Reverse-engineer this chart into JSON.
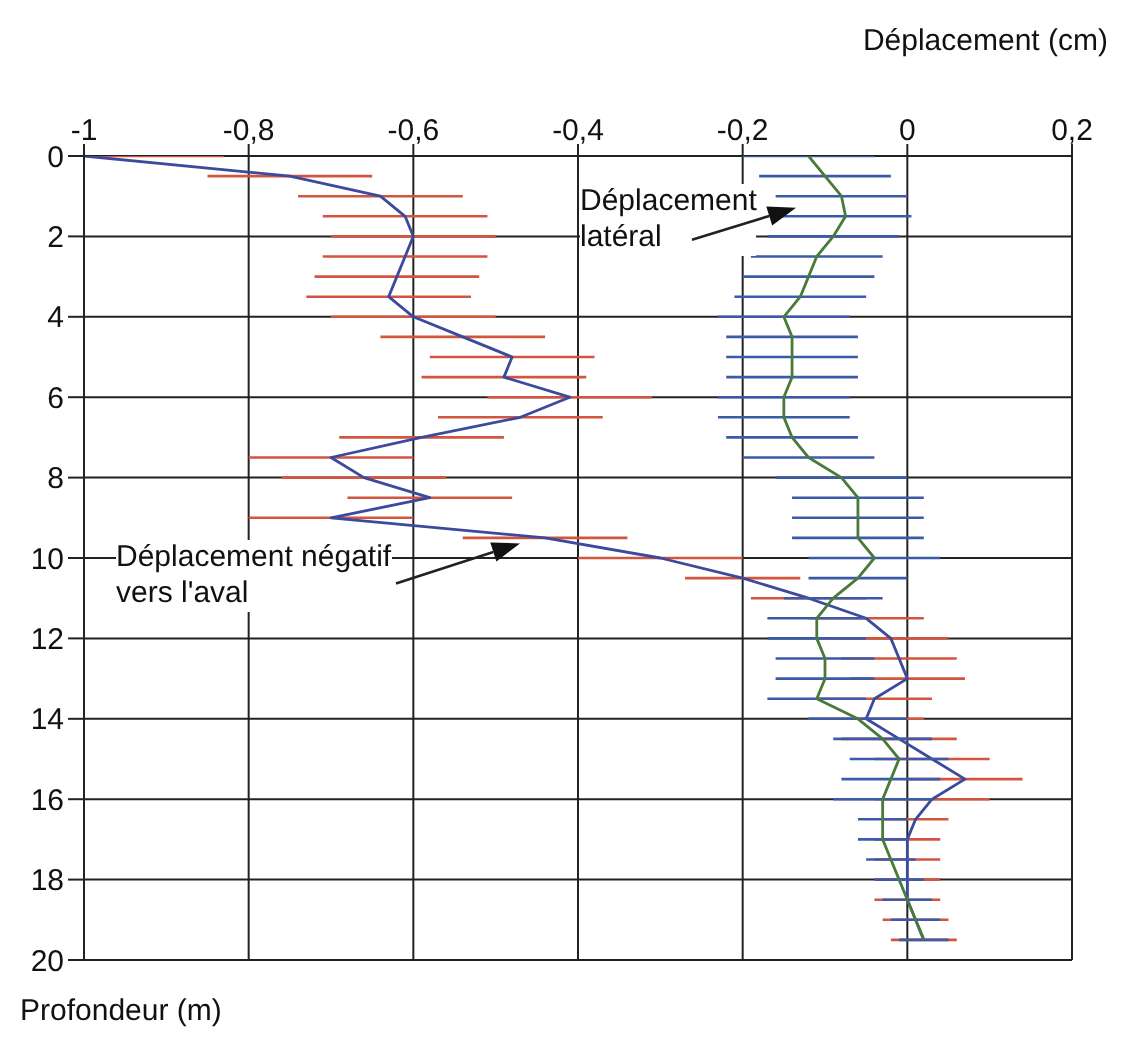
{
  "chart_data": {
    "type": "line",
    "xlabel": "Déplacement (cm)",
    "ylabel": "Profondeur (m)",
    "xlim": [
      -1,
      0.2
    ],
    "xticks": [
      -1,
      {
        "value": -0.8,
        "label": "-0,8"
      },
      {
        "value": -0.6,
        "label": "-0,6"
      },
      {
        "value": -0.4,
        "label": "-0,4"
      },
      {
        "value": -0.2,
        "label": "-0,2"
      },
      0,
      {
        "value": 0.2,
        "label": "0,2"
      }
    ],
    "ylim": [
      20,
      0
    ],
    "yticks": [
      0,
      2,
      4,
      6,
      8,
      10,
      12,
      14,
      16,
      18,
      20
    ],
    "grid": true,
    "legend": false,
    "marker": "none",
    "line_style": "solid",
    "series": [
      {
        "name": "Déplacement négatif vers l'aval",
        "color": "#3b4a9c",
        "x": [
          -1.0,
          -0.75,
          -0.64,
          -0.61,
          -0.6,
          -0.61,
          -0.62,
          -0.63,
          -0.6,
          -0.54,
          -0.48,
          -0.49,
          -0.41,
          -0.47,
          -0.59,
          -0.7,
          -0.66,
          -0.58,
          -0.7,
          -0.44,
          -0.3,
          -0.2,
          -0.12,
          -0.05,
          -0.02,
          -0.01,
          0.0,
          -0.04,
          -0.05,
          -0.01,
          0.03,
          0.07,
          0.03,
          0.01,
          0.0,
          0.0,
          0.0,
          0.0,
          0.01,
          0.02
        ],
        "values": [
          0,
          0.5,
          1,
          1.5,
          2,
          2.5,
          3,
          3.5,
          4,
          4.5,
          5,
          5.5,
          6,
          6.5,
          7,
          7.5,
          8,
          8.5,
          9,
          9.5,
          10,
          10.5,
          11,
          11.5,
          12,
          12.5,
          13,
          13.5,
          14,
          14.5,
          15,
          15.5,
          16,
          16.5,
          17,
          17.5,
          18,
          18.5,
          19,
          19.5
        ],
        "xerrors": [
          [
            -1.0,
            -0.83
          ],
          0.1,
          0.1,
          0.1,
          0.1,
          0.1,
          0.1,
          0.1,
          0.1,
          0.1,
          0.1,
          0.1,
          0.1,
          0.1,
          0.1,
          0.1,
          0.1,
          0.1,
          0.1,
          0.1,
          0.1,
          0.07,
          0.07,
          0.07,
          0.07,
          0.07,
          0.07,
          0.07,
          0.07,
          0.07,
          0.07,
          0.07,
          0.07,
          0.04,
          0.04,
          0.04,
          0.04,
          0.04,
          0.04,
          0.04
        ]
      },
      {
        "name": "Déplacement latéral",
        "color": "#4a7a3a",
        "x": [
          -0.12,
          -0.1,
          -0.08,
          -0.075,
          -0.09,
          -0.11,
          -0.12,
          -0.13,
          -0.15,
          -0.14,
          -0.14,
          -0.14,
          -0.15,
          -0.15,
          -0.14,
          -0.12,
          -0.08,
          -0.06,
          -0.06,
          -0.06,
          -0.04,
          -0.06,
          -0.09,
          -0.11,
          -0.11,
          -0.1,
          -0.1,
          -0.11,
          -0.06,
          -0.03,
          -0.01,
          -0.02,
          -0.03,
          -0.03,
          -0.03,
          -0.02,
          -0.01,
          0.0,
          0.01,
          0.02
        ],
        "values": [
          0,
          0.5,
          1,
          1.5,
          2,
          2.5,
          3,
          3.5,
          4,
          4.5,
          5,
          5.5,
          6,
          6.5,
          7,
          7.5,
          8,
          8.5,
          9,
          9.5,
          10,
          10.5,
          11,
          11.5,
          12,
          12.5,
          13,
          13.5,
          14,
          14.5,
          15,
          15.5,
          16,
          16.5,
          17,
          17.5,
          18,
          18.5,
          19,
          19.5
        ],
        "xerrors": [
          0.08,
          0.08,
          0.08,
          0.08,
          0.08,
          0.08,
          0.08,
          0.08,
          0.08,
          0.08,
          0.08,
          0.08,
          0.08,
          0.08,
          0.08,
          0.08,
          0.08,
          0.08,
          0.08,
          0.08,
          0.08,
          0.06,
          0.06,
          0.06,
          0.06,
          0.06,
          0.06,
          0.06,
          0.06,
          0.06,
          0.06,
          0.06,
          0.06,
          0.03,
          0.03,
          0.03,
          0.03,
          0.03,
          0.03,
          0.03
        ]
      }
    ]
  }
}
